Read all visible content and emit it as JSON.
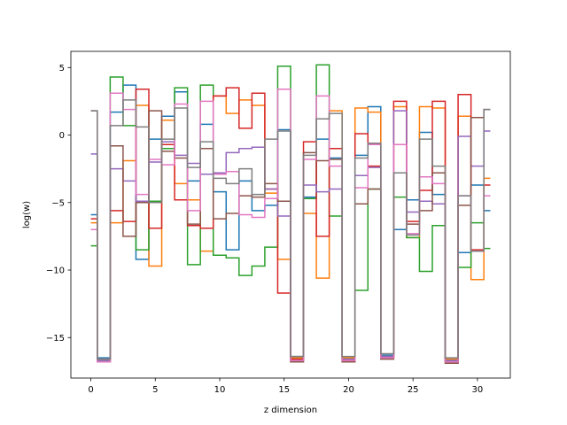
{
  "chart_data": {
    "type": "line",
    "drawstyle": "steps-mid",
    "title": "",
    "xlabel": "z dimension",
    "ylabel": "log(w)",
    "xlim": [
      -1.55,
      32.55
    ],
    "ylim": [
      -18,
      6.2
    ],
    "xticks": [
      0,
      5,
      10,
      15,
      20,
      25,
      30
    ],
    "yticks": [
      -15,
      -10,
      -5,
      0,
      5
    ],
    "x": [
      0,
      1,
      2,
      3,
      4,
      5,
      6,
      7,
      8,
      9,
      10,
      11,
      12,
      13,
      14,
      15,
      16,
      17,
      18,
      19,
      20,
      21,
      22,
      23,
      24,
      25,
      26,
      27,
      28,
      29,
      30,
      31
    ],
    "series": [
      {
        "color": "#1f77b4",
        "values": [
          -5.9,
          -16.5,
          1.7,
          3.7,
          -9.2,
          -0.3,
          1.4,
          3.2,
          -3.4,
          0.8,
          -4.2,
          -8.5,
          -3.4,
          -5.6,
          -5.2,
          0.4,
          -16.4,
          -4.6,
          -0.3,
          -1.7,
          -16.5,
          -1.5,
          2.1,
          -16.3,
          -7.0,
          -4.8,
          0.2,
          -4.4,
          -16.6,
          -8.7,
          -3.7,
          -5.6
        ]
      },
      {
        "color": "#ff7f0e",
        "values": [
          -6.5,
          -16.6,
          -6.5,
          -1.9,
          2.2,
          -9.7,
          1.1,
          -3.6,
          -4.8,
          -8.6,
          2.9,
          1.6,
          2.6,
          2.2,
          -4.3,
          -9.2,
          -16.5,
          -5.8,
          -10.6,
          1.8,
          -16.5,
          2.0,
          1.7,
          -16.4,
          2.1,
          -7.6,
          2.1,
          2.0,
          -16.6,
          1.4,
          -10.7,
          -3.2
        ]
      },
      {
        "color": "#2ca02c",
        "values": [
          -8.2,
          -16.7,
          4.3,
          0.7,
          -8.5,
          -4.9,
          -1.0,
          3.5,
          -9.6,
          3.7,
          -8.9,
          -9.1,
          -10.4,
          -9.7,
          -8.3,
          5.1,
          -16.6,
          -4.7,
          5.2,
          -6.0,
          -16.6,
          -11.5,
          -4.0,
          -16.5,
          -4.6,
          -7.6,
          -10.1,
          -6.7,
          -16.7,
          -9.8,
          -6.5,
          -8.4
        ]
      },
      {
        "color": "#d62728",
        "values": [
          -6.2,
          -16.8,
          -5.6,
          -6.4,
          3.4,
          -6.9,
          -0.7,
          -4.8,
          -6.7,
          -6.9,
          2.9,
          3.5,
          0.5,
          3.1,
          -4.0,
          -11.7,
          -16.6,
          -0.5,
          -7.5,
          -1.0,
          -16.7,
          0.1,
          -2.3,
          -16.5,
          2.5,
          -6.4,
          -4.1,
          2.5,
          -16.8,
          3.0,
          -8.5,
          -3.7
        ]
      },
      {
        "color": "#9467bd",
        "values": [
          -1.4,
          -16.7,
          -2.5,
          -3.4,
          -4.9,
          -2.0,
          -0.5,
          -1.5,
          -2.1,
          -2.9,
          -2.8,
          -1.3,
          -1.0,
          -0.9,
          -4.0,
          -6.0,
          -16.7,
          -3.7,
          -4.2,
          -4.0,
          -16.6,
          -3.0,
          -2.4,
          -16.4,
          1.8,
          -5.7,
          -4.9,
          -5.1,
          -16.7,
          -0.1,
          -2.3,
          0.3
        ]
      },
      {
        "color": "#8c564b",
        "values": [
          1.8,
          -16.8,
          -0.8,
          -7.5,
          -5.0,
          1.8,
          -1.2,
          -1.7,
          -6.6,
          -1.0,
          -6.2,
          -5.8,
          -4.5,
          -4.6,
          -3.6,
          -4.9,
          -16.8,
          -1.3,
          -1.9,
          -1.8,
          -16.8,
          -5.1,
          -4.0,
          -16.6,
          -2.8,
          -6.6,
          -5.6,
          -2.8,
          -16.9,
          -5.2,
          1.3,
          1.9
        ]
      },
      {
        "color": "#e377c2",
        "values": [
          -7.0,
          -16.8,
          3.1,
          1.9,
          -4.4,
          -1.8,
          -2.2,
          2.3,
          -5.6,
          2.5,
          -2.9,
          -2.7,
          -5.9,
          -6.1,
          -4.7,
          3.4,
          -16.7,
          -1.8,
          2.9,
          -2.3,
          -16.7,
          -3.9,
          -0.7,
          -16.5,
          -0.7,
          -7.3,
          -3.1,
          -3.6,
          -16.8,
          -4.5,
          -8.6,
          -4.5
        ]
      },
      {
        "color": "#7f7f7f",
        "values": [
          1.8,
          -16.6,
          0.7,
          2.6,
          0.6,
          -5.0,
          -0.3,
          2.0,
          -2.4,
          -0.5,
          -3.2,
          -3.6,
          -2.5,
          -4.4,
          -0.3,
          0.3,
          -16.4,
          -1.5,
          1.2,
          1.6,
          -16.4,
          -1.7,
          -0.6,
          -16.2,
          -2.8,
          -7.4,
          -0.3,
          -2.3,
          -16.5,
          -4.5,
          -8.6,
          1.9
        ]
      }
    ]
  }
}
